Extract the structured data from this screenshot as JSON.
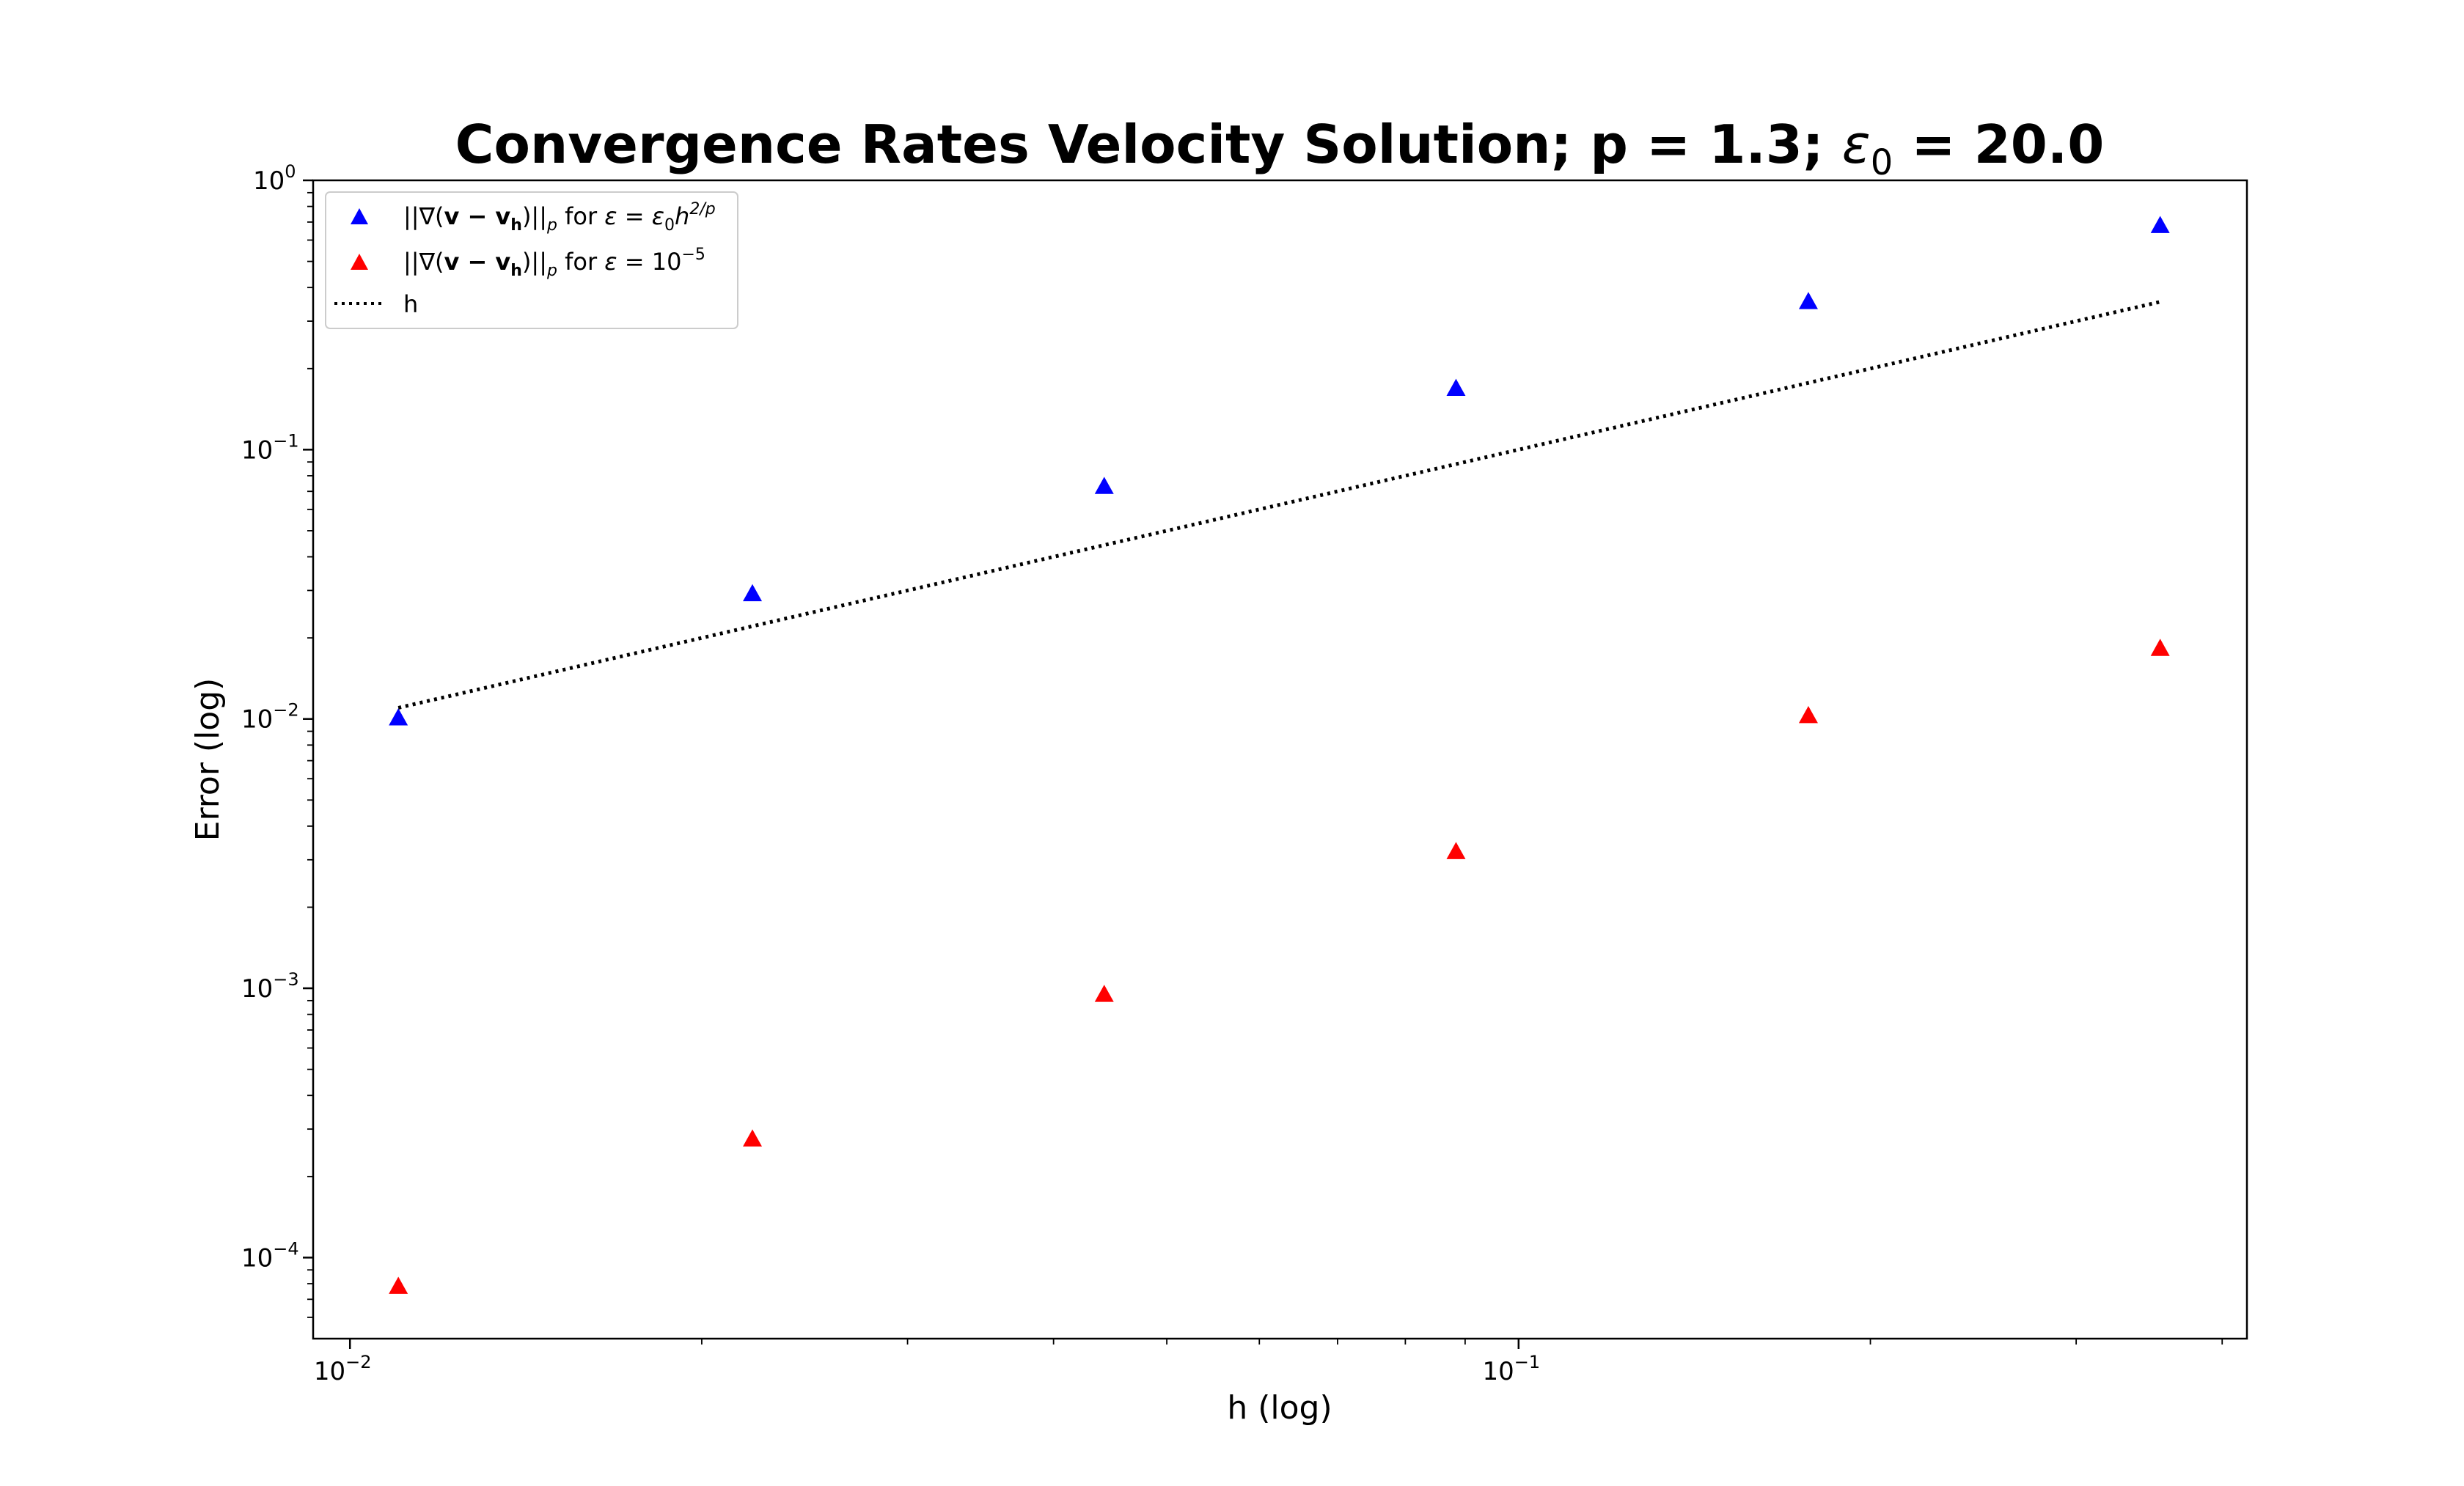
{
  "chart_data": {
    "type": "scatter",
    "title": "Convergence Rates Velocity Solution; p = 1.3; ε₀ = 20.0",
    "title_parts": {
      "main": "Convergence Rates Velocity Solution; p = 1.3; ",
      "eps": "ε",
      "eps_sub": "0",
      "rest": " = 20.0"
    },
    "xlabel": "h (log)",
    "ylabel": "Error (log)",
    "xscale": "log",
    "yscale": "log",
    "xlim": [
      0.0093,
      0.42
    ],
    "ylim": [
      5e-05,
      1.0
    ],
    "grid": false,
    "legend_position": "upper-left",
    "x_ticks": [
      {
        "value": 0.01,
        "base": "10",
        "exp": "−2"
      },
      {
        "value": 0.1,
        "base": "10",
        "exp": "−1"
      }
    ],
    "y_ticks": [
      {
        "value": 1,
        "base": "10",
        "exp": "0"
      },
      {
        "value": 0.1,
        "base": "10",
        "exp": "−1"
      },
      {
        "value": 0.01,
        "base": "10",
        "exp": "−2"
      },
      {
        "value": 0.001,
        "base": "10",
        "exp": "−3"
      },
      {
        "value": 0.0001,
        "base": "10",
        "exp": "−4"
      }
    ],
    "series": [
      {
        "name": "||∇(v − vₕ)||ₚ for ε = ε₀h^(2/p)",
        "legend_parts": {
          "a": "||∇(",
          "b": "v − v",
          "b_sub": "h",
          "c": ")||",
          "c_sub": "p",
          "d": " for ",
          "e": "ε",
          "f": " = ",
          "g": "ε",
          "g_sub": "0",
          "h": "h",
          "h_sup": "2/p"
        },
        "marker": "triangle",
        "color": "#0000ff",
        "x": [
          0.011,
          0.0221,
          0.0442,
          0.0884,
          0.177,
          0.354
        ],
        "y": [
          0.0101,
          0.0292,
          0.0731,
          0.169,
          0.355,
          0.68
        ]
      },
      {
        "name": "||∇(v − vₕ)||ₚ for ε = 10⁻⁵",
        "legend_parts": {
          "a": "||∇(",
          "b": "v − v",
          "b_sub": "h",
          "c": ")||",
          "c_sub": "p",
          "d": " for ",
          "e": "ε",
          "f": " = 10",
          "f_sup": "−5"
        },
        "marker": "triangle",
        "color": "#ff0000",
        "x": [
          0.011,
          0.0221,
          0.0442,
          0.0884,
          0.177,
          0.354
        ],
        "y": [
          7.83e-05,
          0.000276,
          0.00095,
          0.00322,
          0.0103,
          0.0183
        ]
      },
      {
        "name": "h",
        "marker": "dotted-line",
        "color": "#000000",
        "x": [
          0.011,
          0.354
        ],
        "y": [
          0.011,
          0.354
        ]
      }
    ]
  }
}
